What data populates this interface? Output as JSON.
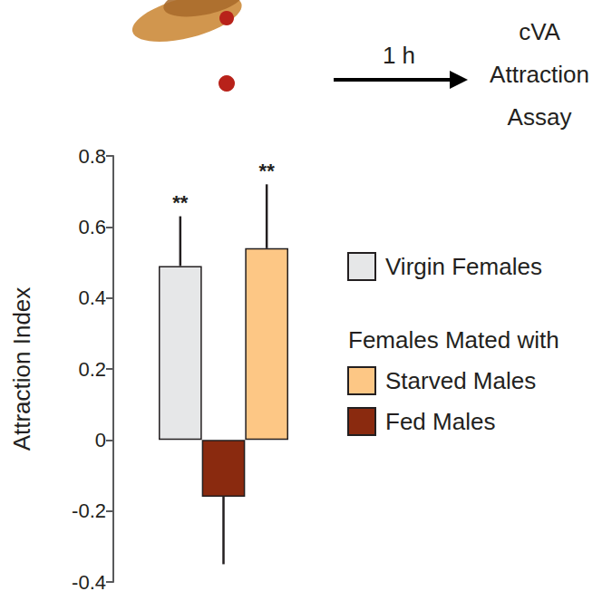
{
  "chart_data": {
    "type": "bar",
    "header_texts": {
      "arrow_label": "1 h",
      "result": [
        "cVA",
        "Attraction",
        "Assay"
      ]
    },
    "y_label": "Attraction Index",
    "categories": [
      null,
      null,
      null
    ],
    "series": [
      {
        "name": "Virgin Females",
        "color": "#e6e7e8",
        "values": [
          0.49,
          null,
          null
        ],
        "errors": [
          0.14,
          null,
          null
        ]
      },
      {
        "name": "Starved Males",
        "color": "#fdc785",
        "values": [
          null,
          null,
          0.54
        ],
        "errors": [
          null,
          null,
          0.18
        ]
      },
      {
        "name": "Fed Males",
        "color": "#8a2a0f",
        "values": [
          null,
          -0.16,
          null
        ],
        "errors": [
          null,
          0.19,
          null
        ]
      }
    ],
    "legend_title": "Females Mated with",
    "annotations": [
      {
        "text": "**",
        "category": 0
      },
      {
        "text": "**",
        "category": 2
      }
    ],
    "ylim": [
      -0.4,
      0.8
    ],
    "yticks": [
      -0.4,
      -0.2,
      0,
      0.2,
      0.4,
      0.6,
      0.8
    ],
    "grid": false,
    "legend": "right",
    "data_labels": false,
    "tick_labels": "y"
  }
}
